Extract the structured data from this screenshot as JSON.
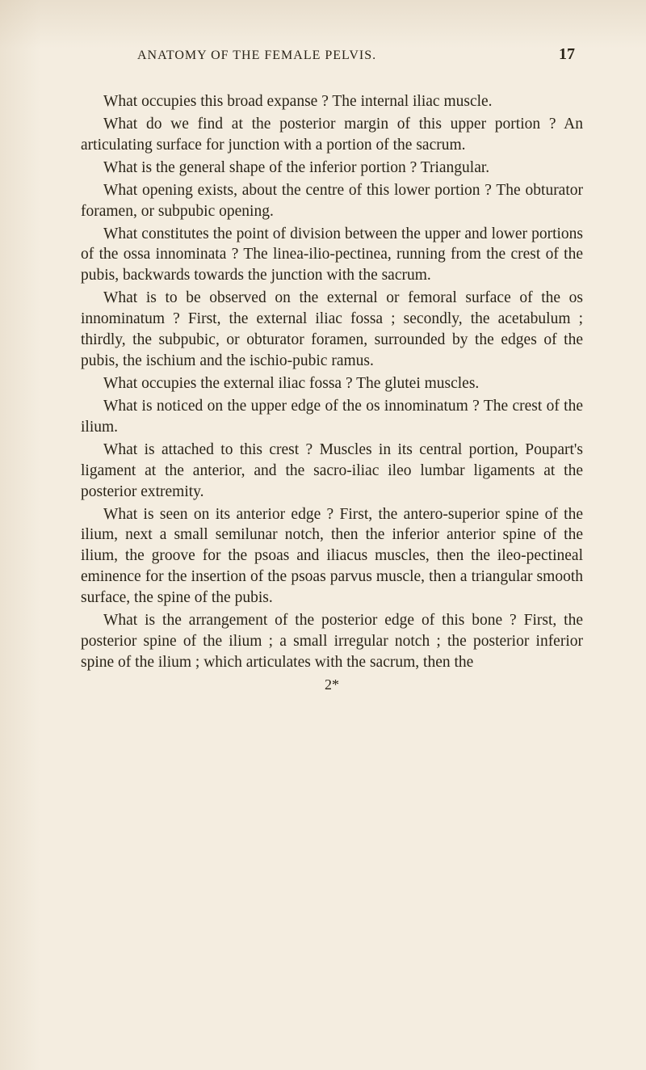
{
  "header": {
    "running_title": "ANATOMY OF THE FEMALE PELVIS.",
    "page_number": "17"
  },
  "paragraphs": [
    "What occupies this broad expanse ?  The internal iliac muscle.",
    "What do we find at the posterior margin of this upper portion ?  An articulating surface for junction with a portion of the sacrum.",
    "What is the general shape of the inferior portion ? Triangular.",
    "What opening exists, about the centre of this lower portion ?  The obturator foramen, or subpubic opening.",
    "What constitutes the point of division between the upper and lower portions of the ossa innominata ? The linea-ilio-pectinea, running from the crest of the pubis, backwards towards the junction with the sacrum.",
    "What is to be observed on the external or femoral surface of the os innominatum ?  First, the external iliac fossa ; secondly, the acetabulum ; thirdly, the subpubic, or obturator foramen, surrounded by the edges of the pubis, the ischium and the ischio-pubic ramus.",
    "What occupies the external iliac fossa ?  The glutei muscles.",
    "What is noticed on the upper edge of the os innominatum ?  The crest of the ilium.",
    "What is attached to this crest ?  Muscles in its central portion, Poupart's ligament at the anterior, and the sacro-iliac ileo lumbar ligaments at the posterior extremity.",
    "What is seen on its anterior edge ?  First, the antero-superior spine of the ilium, next a small semilunar notch, then the inferior anterior spine of the ilium, the groove for the psoas and iliacus muscles, then the ileo-pectineal eminence for the insertion of the psoas parvus muscle, then a triangular smooth surface, the spine of the pubis.",
    "What is the arrangement of the posterior edge of this bone ?  First, the posterior spine of the ilium ; a small irregular notch ; the posterior inferior spine of the ilium ; which articulates with the sacrum, then the"
  ],
  "signature_mark": "2*"
}
